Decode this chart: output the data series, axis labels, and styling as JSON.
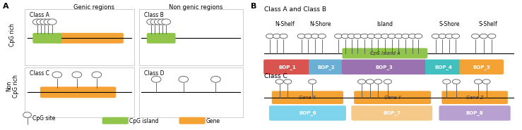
{
  "fig_width": 7.39,
  "fig_height": 1.85,
  "dpi": 100,
  "colors": {
    "green": "#90c44a",
    "orange": "#f5a234",
    "red": "#d9534f",
    "blue": "#6baed6",
    "purple": "#9b72b0",
    "cyan": "#41c0bf",
    "light_blue": "#7dd4ec",
    "light_orange": "#f5c98a",
    "light_purple": "#b8a0d0",
    "gray": "#888888"
  },
  "panel_A": {
    "col_labels": [
      "Genic regions",
      "Non genic regions"
    ],
    "row_labels": [
      "CpG rich",
      "Non\nCpG rich"
    ]
  },
  "panel_B": {
    "region_labels": [
      "N-Shelf",
      "N-Shore",
      "Island",
      "S-Shore",
      "S-Shelf"
    ],
    "island_label": "CpG Island A",
    "class_ab_label": "Class A and Class B",
    "class_c_label": "Class C",
    "gene_labels": [
      "Gene X",
      "Gene Y",
      "Gene Z"
    ]
  }
}
